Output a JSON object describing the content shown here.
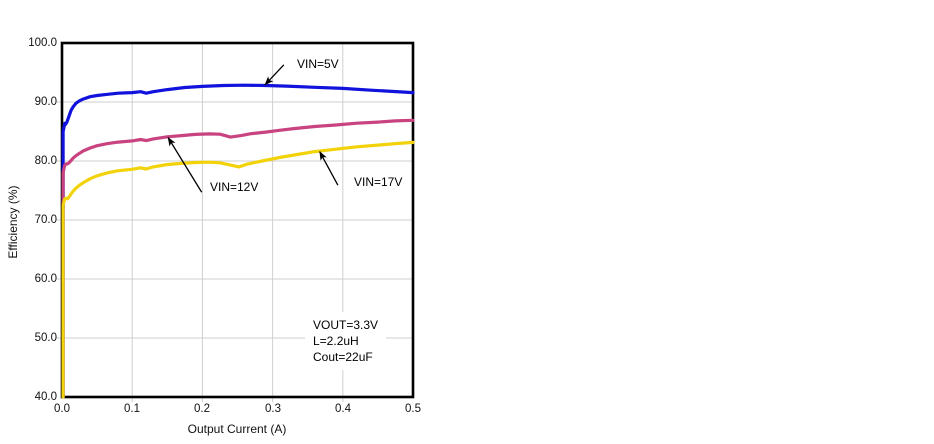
{
  "chart_data": {
    "type": "line",
    "title": "",
    "xlabel": "Output Current (A)",
    "ylabel": "Efficiency (%)",
    "xlim": [
      0.0,
      0.5
    ],
    "ylim": [
      40.0,
      100.0
    ],
    "grid": true,
    "grid_color": "#cfcfcf",
    "axis_color": "#000000",
    "xticks": [
      0.0,
      0.1,
      0.2,
      0.3,
      0.4,
      0.5
    ],
    "xtick_labels": [
      "0.0",
      "0.1",
      "0.2",
      "0.3",
      "0.4",
      "0.5"
    ],
    "yticks": [
      40,
      50,
      60,
      70,
      80,
      90,
      100
    ],
    "ytick_labels": [
      "40.0",
      "50.0",
      "60.0",
      "70.0",
      "80.0",
      "90.0",
      "100.0"
    ],
    "series": [
      {
        "name": "VIN=5V",
        "color": "#1212dd",
        "points": [
          [
            0.0015,
            40
          ],
          [
            0.0015,
            85.0
          ],
          [
            0.003,
            85.8
          ],
          [
            0.004,
            86.4
          ],
          [
            0.005,
            86.2
          ],
          [
            0.007,
            86.6
          ],
          [
            0.01,
            87.6
          ],
          [
            0.013,
            88.6
          ],
          [
            0.016,
            89.2
          ],
          [
            0.02,
            89.8
          ],
          [
            0.025,
            90.2
          ],
          [
            0.03,
            90.5
          ],
          [
            0.04,
            90.9
          ],
          [
            0.05,
            91.1
          ],
          [
            0.065,
            91.3
          ],
          [
            0.08,
            91.5
          ],
          [
            0.1,
            91.6
          ],
          [
            0.112,
            91.75
          ],
          [
            0.12,
            91.5
          ],
          [
            0.13,
            91.75
          ],
          [
            0.15,
            92.1
          ],
          [
            0.175,
            92.45
          ],
          [
            0.2,
            92.65
          ],
          [
            0.23,
            92.8
          ],
          [
            0.26,
            92.85
          ],
          [
            0.29,
            92.8
          ],
          [
            0.32,
            92.7
          ],
          [
            0.36,
            92.5
          ],
          [
            0.4,
            92.3
          ],
          [
            0.44,
            92.0
          ],
          [
            0.47,
            91.8
          ],
          [
            0.5,
            91.6
          ]
        ]
      },
      {
        "name": "VIN=12V",
        "color": "#c8437f",
        "points": [
          [
            0.0015,
            40
          ],
          [
            0.0015,
            78.0
          ],
          [
            0.003,
            78.8
          ],
          [
            0.004,
            79.3
          ],
          [
            0.006,
            79.5
          ],
          [
            0.008,
            79.5
          ],
          [
            0.01,
            79.7
          ],
          [
            0.013,
            80.1
          ],
          [
            0.016,
            80.5
          ],
          [
            0.02,
            80.9
          ],
          [
            0.025,
            81.3
          ],
          [
            0.03,
            81.7
          ],
          [
            0.04,
            82.2
          ],
          [
            0.05,
            82.6
          ],
          [
            0.065,
            82.95
          ],
          [
            0.08,
            83.2
          ],
          [
            0.1,
            83.4
          ],
          [
            0.112,
            83.65
          ],
          [
            0.12,
            83.45
          ],
          [
            0.13,
            83.75
          ],
          [
            0.15,
            84.1
          ],
          [
            0.17,
            84.3
          ],
          [
            0.19,
            84.5
          ],
          [
            0.21,
            84.6
          ],
          [
            0.225,
            84.55
          ],
          [
            0.24,
            84.05
          ],
          [
            0.255,
            84.3
          ],
          [
            0.27,
            84.65
          ],
          [
            0.29,
            84.9
          ],
          [
            0.31,
            85.2
          ],
          [
            0.33,
            85.5
          ],
          [
            0.36,
            85.85
          ],
          [
            0.39,
            86.1
          ],
          [
            0.42,
            86.4
          ],
          [
            0.45,
            86.6
          ],
          [
            0.475,
            86.8
          ],
          [
            0.5,
            86.9
          ]
        ]
      },
      {
        "name": "VIN=17V",
        "color": "#f2d30b",
        "points": [
          [
            0.0015,
            40
          ],
          [
            0.0015,
            72.5
          ],
          [
            0.003,
            73.2
          ],
          [
            0.004,
            73.6
          ],
          [
            0.006,
            73.7
          ],
          [
            0.008,
            73.6
          ],
          [
            0.01,
            73.9
          ],
          [
            0.013,
            74.4
          ],
          [
            0.016,
            74.9
          ],
          [
            0.02,
            75.4
          ],
          [
            0.025,
            75.9
          ],
          [
            0.03,
            76.3
          ],
          [
            0.04,
            77.0
          ],
          [
            0.05,
            77.5
          ],
          [
            0.065,
            78.0
          ],
          [
            0.08,
            78.35
          ],
          [
            0.1,
            78.6
          ],
          [
            0.112,
            78.85
          ],
          [
            0.12,
            78.65
          ],
          [
            0.13,
            79.0
          ],
          [
            0.15,
            79.4
          ],
          [
            0.17,
            79.6
          ],
          [
            0.19,
            79.75
          ],
          [
            0.21,
            79.8
          ],
          [
            0.225,
            79.7
          ],
          [
            0.24,
            79.3
          ],
          [
            0.252,
            79.0
          ],
          [
            0.265,
            79.5
          ],
          [
            0.285,
            80.0
          ],
          [
            0.31,
            80.6
          ],
          [
            0.335,
            81.1
          ],
          [
            0.36,
            81.6
          ],
          [
            0.39,
            82.0
          ],
          [
            0.42,
            82.4
          ],
          [
            0.45,
            82.7
          ],
          [
            0.475,
            82.95
          ],
          [
            0.5,
            83.15
          ]
        ]
      }
    ],
    "annotations": [
      {
        "label": "VIN=5V",
        "from": [
          0.316,
          96.3
        ],
        "to": [
          0.289,
          92.9
        ]
      },
      {
        "label": "VIN=12V",
        "from": [
          0.199,
          74.7
        ],
        "to": [
          0.151,
          84.0
        ]
      },
      {
        "label": "VIN=17V",
        "from": [
          0.393,
          75.9
        ],
        "to": [
          0.367,
          81.6
        ]
      }
    ],
    "note_lines": [
      "VOUT=3.3V",
      "L=2.2uH",
      "Cout=22uF"
    ]
  }
}
